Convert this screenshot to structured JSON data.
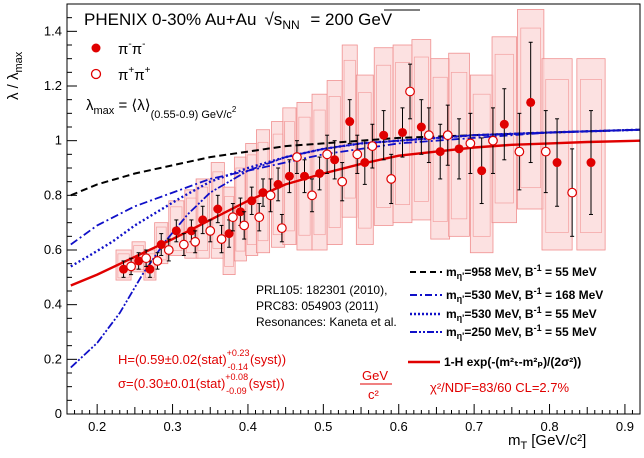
{
  "chart_data": {
    "type": "scatter",
    "title": "PHENIX 0-30%  Au+Au",
    "energy_label": "200 GeV",
    "energy_prefix": "√s",
    "energy_sub": "NN",
    "xlabel": "m",
    "xlabel_sub": "T",
    "xlabel_unit": "[GeV/c²]",
    "ylabel": "λ / λ",
    "ylabel_sub": "max",
    "xlim": [
      0.16,
      0.92
    ],
    "ylim": [
      0,
      1.5
    ],
    "x_ticks": [
      "0.2",
      "0.3",
      "0.4",
      "0.5",
      "0.6",
      "0.7",
      "0.8",
      "0.9"
    ],
    "x_tick_values": [
      0.2,
      0.3,
      0.4,
      0.5,
      0.6,
      0.7,
      0.8,
      0.9
    ],
    "y_ticks": [
      "0",
      "0.2",
      "0.4",
      "0.6",
      "0.8",
      "1",
      "1.2",
      "1.4"
    ],
    "y_tick_values": [
      0,
      0.2,
      0.4,
      0.6,
      0.8,
      1.0,
      1.2,
      1.4
    ],
    "grid": false,
    "legend_placement": "top-left",
    "series": [
      {
        "name": "π⁻π⁻",
        "marker": "filled-circle",
        "color": "#e00000",
        "points": [
          {
            "x": 0.235,
            "y": 0.53,
            "err": 0.03,
            "syst_lo": 0.49,
            "syst_hi": 0.6
          },
          {
            "x": 0.255,
            "y": 0.56,
            "err": 0.03,
            "syst_lo": 0.52,
            "syst_hi": 0.63
          },
          {
            "x": 0.27,
            "y": 0.53,
            "err": 0.03,
            "syst_lo": 0.49,
            "syst_hi": 0.6
          },
          {
            "x": 0.285,
            "y": 0.62,
            "err": 0.04,
            "syst_lo": 0.55,
            "syst_hi": 0.7
          },
          {
            "x": 0.305,
            "y": 0.67,
            "err": 0.04,
            "syst_lo": 0.58,
            "syst_hi": 0.78
          },
          {
            "x": 0.325,
            "y": 0.67,
            "err": 0.04,
            "syst_lo": 0.57,
            "syst_hi": 0.82
          },
          {
            "x": 0.34,
            "y": 0.71,
            "err": 0.05,
            "syst_lo": 0.57,
            "syst_hi": 0.86
          },
          {
            "x": 0.36,
            "y": 0.75,
            "err": 0.05,
            "syst_lo": 0.57,
            "syst_hi": 0.92
          },
          {
            "x": 0.375,
            "y": 0.66,
            "err": 0.05,
            "syst_lo": 0.51,
            "syst_hi": 0.83
          },
          {
            "x": 0.39,
            "y": 0.74,
            "err": 0.05,
            "syst_lo": 0.56,
            "syst_hi": 0.94
          },
          {
            "x": 0.405,
            "y": 0.78,
            "err": 0.05,
            "syst_lo": 0.58,
            "syst_hi": 0.99
          },
          {
            "x": 0.42,
            "y": 0.81,
            "err": 0.05,
            "syst_lo": 0.59,
            "syst_hi": 1.04
          },
          {
            "x": 0.44,
            "y": 0.84,
            "err": 0.06,
            "syst_lo": 0.61,
            "syst_hi": 1.07
          },
          {
            "x": 0.455,
            "y": 0.87,
            "err": 0.06,
            "syst_lo": 0.62,
            "syst_hi": 1.12
          },
          {
            "x": 0.475,
            "y": 0.87,
            "err": 0.06,
            "syst_lo": 0.6,
            "syst_hi": 1.14
          },
          {
            "x": 0.495,
            "y": 0.88,
            "err": 0.06,
            "syst_lo": 0.6,
            "syst_hi": 1.17
          },
          {
            "x": 0.515,
            "y": 0.93,
            "err": 0.07,
            "syst_lo": 0.62,
            "syst_hi": 1.22
          },
          {
            "x": 0.535,
            "y": 1.07,
            "err": 0.08,
            "syst_lo": 0.72,
            "syst_hi": 1.35
          },
          {
            "x": 0.555,
            "y": 0.92,
            "err": 0.08,
            "syst_lo": 0.62,
            "syst_hi": 1.24
          },
          {
            "x": 0.58,
            "y": 1.02,
            "err": 0.09,
            "syst_lo": 0.69,
            "syst_hi": 1.34
          },
          {
            "x": 0.605,
            "y": 1.03,
            "err": 0.09,
            "syst_lo": 0.7,
            "syst_hi": 1.35
          },
          {
            "x": 0.63,
            "y": 1.05,
            "err": 0.1,
            "syst_lo": 0.71,
            "syst_hi": 1.37
          },
          {
            "x": 0.655,
            "y": 0.96,
            "err": 0.1,
            "syst_lo": 0.64,
            "syst_hi": 1.3
          },
          {
            "x": 0.68,
            "y": 0.97,
            "err": 0.11,
            "syst_lo": 0.65,
            "syst_hi": 1.32
          },
          {
            "x": 0.71,
            "y": 0.89,
            "err": 0.12,
            "syst_lo": 0.59,
            "syst_hi": 1.24
          },
          {
            "x": 0.74,
            "y": 1.06,
            "err": 0.13,
            "syst_lo": 0.7,
            "syst_hi": 1.38
          },
          {
            "x": 0.775,
            "y": 1.14,
            "err": 0.22,
            "syst_lo": 0.75,
            "syst_hi": 1.48
          },
          {
            "x": 0.81,
            "y": 0.92,
            "err": 0.16,
            "syst_lo": 0.6,
            "syst_hi": 1.3
          },
          {
            "x": 0.855,
            "y": 0.92,
            "err": 0.19,
            "syst_lo": 0.6,
            "syst_hi": 1.3
          }
        ]
      },
      {
        "name": "π⁺π⁺",
        "marker": "open-circle",
        "color": "#e00000",
        "points": [
          {
            "x": 0.245,
            "y": 0.54,
            "err": 0.03
          },
          {
            "x": 0.265,
            "y": 0.57,
            "err": 0.03
          },
          {
            "x": 0.28,
            "y": 0.56,
            "err": 0.03
          },
          {
            "x": 0.295,
            "y": 0.6,
            "err": 0.04
          },
          {
            "x": 0.315,
            "y": 0.62,
            "err": 0.04
          },
          {
            "x": 0.33,
            "y": 0.63,
            "err": 0.04
          },
          {
            "x": 0.35,
            "y": 0.67,
            "err": 0.04
          },
          {
            "x": 0.365,
            "y": 0.64,
            "err": 0.05
          },
          {
            "x": 0.38,
            "y": 0.72,
            "err": 0.05
          },
          {
            "x": 0.395,
            "y": 0.69,
            "err": 0.05
          },
          {
            "x": 0.415,
            "y": 0.72,
            "err": 0.05
          },
          {
            "x": 0.43,
            "y": 0.8,
            "err": 0.06
          },
          {
            "x": 0.445,
            "y": 0.68,
            "err": 0.05
          },
          {
            "x": 0.465,
            "y": 0.94,
            "err": 0.06
          },
          {
            "x": 0.485,
            "y": 0.8,
            "err": 0.06
          },
          {
            "x": 0.505,
            "y": 0.95,
            "err": 0.07
          },
          {
            "x": 0.525,
            "y": 0.85,
            "err": 0.07
          },
          {
            "x": 0.545,
            "y": 0.95,
            "err": 0.07
          },
          {
            "x": 0.565,
            "y": 0.98,
            "err": 0.08
          },
          {
            "x": 0.59,
            "y": 0.86,
            "err": 0.09
          },
          {
            "x": 0.615,
            "y": 1.18,
            "err": 0.1
          },
          {
            "x": 0.64,
            "y": 1.02,
            "err": 0.1
          },
          {
            "x": 0.665,
            "y": 1.02,
            "err": 0.11
          },
          {
            "x": 0.695,
            "y": 0.99,
            "err": 0.11
          },
          {
            "x": 0.725,
            "y": 1.0,
            "err": 0.12
          },
          {
            "x": 0.76,
            "y": 0.96,
            "err": 0.14
          },
          {
            "x": 0.795,
            "y": 0.96,
            "err": 0.15
          },
          {
            "x": 0.83,
            "y": 0.81,
            "err": 0.16
          }
        ]
      }
    ],
    "models": [
      {
        "label": "m",
        "label_sub": "η'",
        "label_rest": "=958 MeV, B",
        "label_sup": "-1",
        "label_end": " = 55 MeV",
        "style": "dashed",
        "color": "#000000",
        "points": [
          [
            0.165,
            0.8
          ],
          [
            0.2,
            0.84
          ],
          [
            0.25,
            0.88
          ],
          [
            0.3,
            0.91
          ],
          [
            0.35,
            0.94
          ],
          [
            0.4,
            0.96
          ],
          [
            0.45,
            0.98
          ],
          [
            0.5,
            0.99
          ],
          [
            0.55,
            1.0
          ],
          [
            0.6,
            1.01
          ],
          [
            0.7,
            1.02
          ],
          [
            0.8,
            1.03
          ],
          [
            0.92,
            1.04
          ]
        ]
      },
      {
        "label": "m",
        "label_sub": "η'",
        "label_rest": "=530 MeV, B",
        "label_sup": "-1",
        "label_end": " = 168 MeV",
        "style": "dash-dot",
        "color": "#1010c8",
        "points": [
          [
            0.165,
            0.62
          ],
          [
            0.2,
            0.69
          ],
          [
            0.25,
            0.76
          ],
          [
            0.3,
            0.81
          ],
          [
            0.35,
            0.86
          ],
          [
            0.4,
            0.89
          ],
          [
            0.45,
            0.92
          ],
          [
            0.5,
            0.95
          ],
          [
            0.55,
            0.97
          ],
          [
            0.6,
            0.99
          ],
          [
            0.7,
            1.01
          ],
          [
            0.8,
            1.03
          ],
          [
            0.92,
            1.04
          ]
        ]
      },
      {
        "label": "m",
        "label_sub": "η'",
        "label_rest": "=530 MeV, B",
        "label_sup": "-1",
        "label_end": " = 55 MeV",
        "style": "dotted",
        "color": "#1010c8",
        "points": [
          [
            0.165,
            0.54
          ],
          [
            0.19,
            0.58
          ],
          [
            0.22,
            0.63
          ],
          [
            0.25,
            0.69
          ],
          [
            0.28,
            0.74
          ],
          [
            0.31,
            0.79
          ],
          [
            0.35,
            0.85
          ],
          [
            0.4,
            0.9
          ],
          [
            0.45,
            0.94
          ],
          [
            0.5,
            0.97
          ],
          [
            0.55,
            0.99
          ],
          [
            0.6,
            1.0
          ],
          [
            0.7,
            1.02
          ],
          [
            0.8,
            1.03
          ],
          [
            0.92,
            1.04
          ]
        ]
      },
      {
        "label": "m",
        "label_sub": "η'",
        "label_rest": "=250 MeV, B",
        "label_sup": "-1",
        "label_end": " = 55 MeV",
        "style": "dash-dot-dot",
        "color": "#1010c8",
        "points": [
          [
            0.165,
            0.17
          ],
          [
            0.2,
            0.26
          ],
          [
            0.23,
            0.37
          ],
          [
            0.26,
            0.51
          ],
          [
            0.29,
            0.63
          ],
          [
            0.32,
            0.73
          ],
          [
            0.35,
            0.81
          ],
          [
            0.4,
            0.89
          ],
          [
            0.45,
            0.94
          ],
          [
            0.5,
            0.97
          ],
          [
            0.55,
            0.99
          ],
          [
            0.6,
            1.0
          ],
          [
            0.7,
            1.02
          ],
          [
            0.8,
            1.03
          ],
          [
            0.92,
            1.04
          ]
        ]
      }
    ],
    "fit": {
      "label_main": "1-H exp(-(m",
      "color": "#e00000",
      "points": [
        [
          0.165,
          0.47
        ],
        [
          0.2,
          0.51
        ],
        [
          0.25,
          0.575
        ],
        [
          0.3,
          0.64
        ],
        [
          0.35,
          0.71
        ],
        [
          0.4,
          0.78
        ],
        [
          0.45,
          0.84
        ],
        [
          0.5,
          0.88
        ],
        [
          0.55,
          0.915
        ],
        [
          0.6,
          0.945
        ],
        [
          0.65,
          0.96
        ],
        [
          0.7,
          0.975
        ],
        [
          0.75,
          0.985
        ],
        [
          0.8,
          0.99
        ],
        [
          0.85,
          0.995
        ],
        [
          0.92,
          1.0
        ]
      ]
    },
    "annotations": {
      "legend_minus": "π",
      "legend_minus_sup": "-",
      "legend_minus_mid": "π",
      "legend_minus_end": "-",
      "legend_plus": "π",
      "legend_plus_sup": "+",
      "legend_plus_mid": "π",
      "legend_plus_end": "+",
      "lambda_max": "λ",
      "lambda_max_sub": "max",
      "lambda_max_eq": " = ⟨λ⟩",
      "lambda_max_range": "(0.55-0.9) GeV/c",
      "refs": [
        "PRL105: 182301 (2010),",
        "PRC83: 054903 (2011)",
        "Resonances: Kaneta et al."
      ],
      "H_text": "H=(0.59±0.02(stat)",
      "H_syst_hi": "+0.23",
      "H_syst_lo": "-0.14",
      "H_end": "(syst))",
      "sigma_text": "σ=(0.30±0.01(stat)",
      "sigma_syst_hi": "+0.08",
      "sigma_syst_lo": "-0.09",
      "sigma_end": "(syst))",
      "sigma_unit_num": "GeV",
      "sigma_unit_den": "c²",
      "chi2": "χ²/NDF=83/60 CL=2.7%",
      "fit_formula": "1-H exp(-(m²ₜ-m²ₚ)/(2σ²))"
    }
  }
}
